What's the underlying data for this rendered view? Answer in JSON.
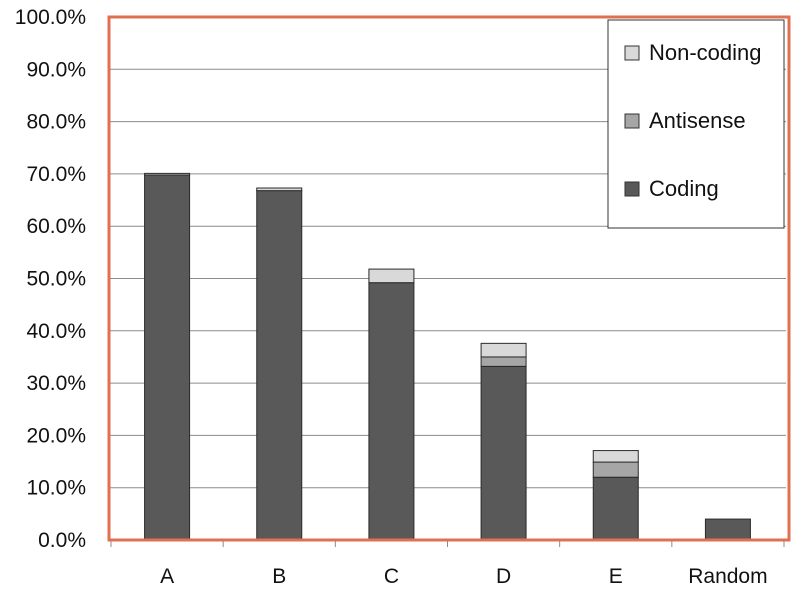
{
  "chart_data": {
    "type": "bar",
    "stacked": true,
    "title": "",
    "xlabel": "",
    "ylabel": "",
    "ylim": [
      0,
      100
    ],
    "y_tick_format": "percent_1dp",
    "y_ticks": [
      "0.0%",
      "10.0%",
      "20.0%",
      "30.0%",
      "40.0%",
      "50.0%",
      "60.0%",
      "70.0%",
      "80.0%",
      "90.0%",
      "100.0%"
    ],
    "categories": [
      "A",
      "B",
      "C",
      "D",
      "E",
      "Random"
    ],
    "series": [
      {
        "name": "Coding",
        "color": "#595959",
        "values": [
          69.8,
          66.8,
          49.2,
          33.2,
          12.0,
          4.0
        ]
      },
      {
        "name": "Antisense",
        "color": "#a6a6a6",
        "values": [
          0.0,
          0.0,
          0.0,
          1.8,
          2.9,
          0.0
        ]
      },
      {
        "name": "Non-coding",
        "color": "#d9d9d9",
        "values": [
          0.3,
          0.5,
          2.6,
          2.6,
          2.2,
          0.0
        ]
      }
    ],
    "legend": {
      "position": "top-right",
      "order": [
        "Non-coding",
        "Antisense",
        "Coding"
      ]
    },
    "grid": true,
    "plot_border_color": "#e07050"
  }
}
